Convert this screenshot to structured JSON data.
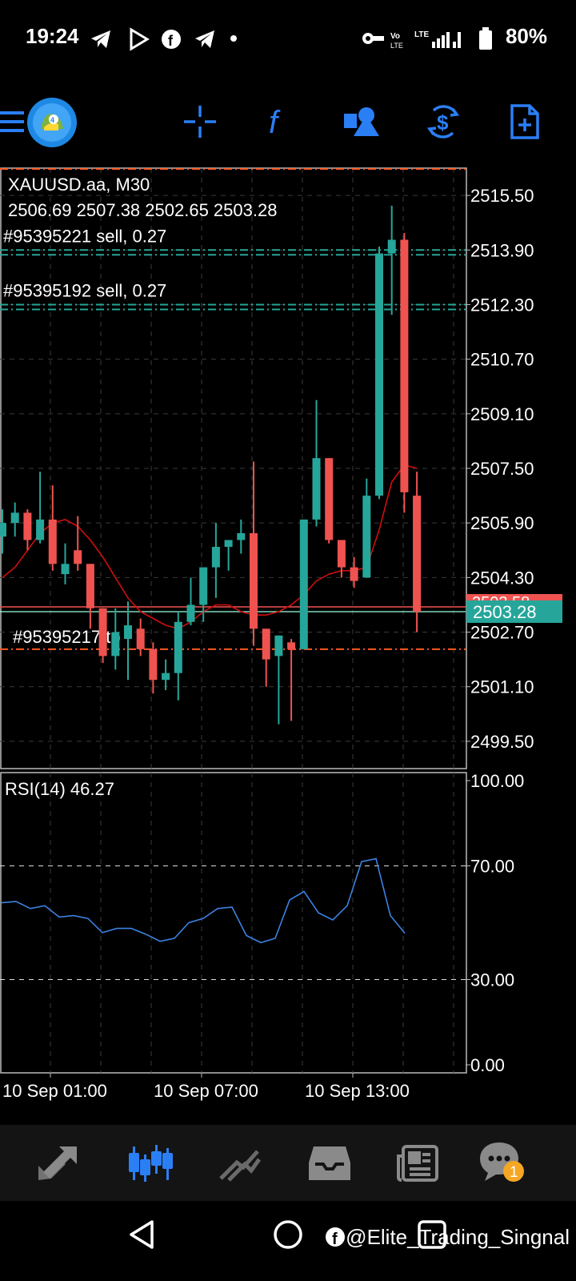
{
  "status_bar": {
    "time": "19:24",
    "battery": "80%",
    "icons": [
      "telegram-icon",
      "play-store-icon",
      "facebook-icon",
      "telegram-icon",
      "dot-icon",
      "vpn-key-icon",
      "volte-icon",
      "lte-signal-icon",
      "signal-icon",
      "battery-icon"
    ]
  },
  "toolbar": {
    "items": [
      "menu-icon",
      "metatrader-logo",
      "crosshair-icon",
      "indicators-icon",
      "objects-icon",
      "trade-icon",
      "new-order-icon"
    ]
  },
  "chart": {
    "symbol": "XAUUSD.aa, M30",
    "ohlc": "2506.69 2507.38 2502.65 2503.28",
    "orders": [
      {
        "label": "#95395221 sell, 0.27",
        "price": 2513.9
      },
      {
        "label": "#95395192 sell, 0.27",
        "price": 2512.3
      },
      {
        "label": "#95395217 tp",
        "price": 2502.2
      }
    ],
    "current_price_label": "2503.28",
    "hidden_price_label": "2503.58",
    "price_axis": [
      "2515.50",
      "2513.90",
      "2512.30",
      "2510.70",
      "2509.10",
      "2507.50",
      "2505.90",
      "2504.30",
      "2502.70",
      "2501.10",
      "2499.50"
    ],
    "rsi_title": "RSI(14) 46.27",
    "rsi_axis": [
      "100.00",
      "70.00",
      "30.00",
      "0.00"
    ],
    "time_labels": [
      "10 Sep 01:00",
      "10 Sep 07:00",
      "10 Sep 13:00"
    ],
    "colors": {
      "bull": "#26a69a",
      "bear": "#ef5350",
      "ma": "#d10e0e",
      "rsi": "#3b82e0",
      "grid": "#3a3a3a",
      "order": "#26a69a",
      "tp": "#ff5722"
    }
  },
  "chart_data": {
    "type": "candlestick",
    "symbol": "XAUUSD.aa",
    "timeframe": "M30",
    "candles": [
      {
        "o": 2505.5,
        "h": 2506.3,
        "l": 2505.0,
        "c": 2505.9
      },
      {
        "o": 2505.9,
        "h": 2506.5,
        "l": 2505.5,
        "c": 2506.2
      },
      {
        "o": 2506.2,
        "h": 2506.3,
        "l": 2505.1,
        "c": 2505.4
      },
      {
        "o": 2505.4,
        "h": 2507.4,
        "l": 2505.3,
        "c": 2506.0
      },
      {
        "o": 2506.0,
        "h": 2507.0,
        "l": 2504.5,
        "c": 2504.7
      },
      {
        "o": 2504.4,
        "h": 2505.3,
        "l": 2504.1,
        "c": 2504.7
      },
      {
        "o": 2505.1,
        "h": 2506.1,
        "l": 2504.5,
        "c": 2504.7
      },
      {
        "o": 2504.7,
        "h": 2504.7,
        "l": 2502.8,
        "c": 2503.4
      },
      {
        "o": 2503.4,
        "h": 2503.4,
        "l": 2501.8,
        "c": 2502.0
      },
      {
        "o": 2502.0,
        "h": 2503.4,
        "l": 2501.6,
        "c": 2502.7
      },
      {
        "o": 2502.5,
        "h": 2503.6,
        "l": 2501.3,
        "c": 2502.9
      },
      {
        "o": 2502.8,
        "h": 2503.1,
        "l": 2502.0,
        "c": 2502.2
      },
      {
        "o": 2502.2,
        "h": 2502.4,
        "l": 2500.9,
        "c": 2501.3
      },
      {
        "o": 2501.3,
        "h": 2501.9,
        "l": 2501.0,
        "c": 2501.5
      },
      {
        "o": 2501.5,
        "h": 2503.3,
        "l": 2500.7,
        "c": 2503.0
      },
      {
        "o": 2503.0,
        "h": 2504.3,
        "l": 2502.9,
        "c": 2503.5
      },
      {
        "o": 2503.5,
        "h": 2504.6,
        "l": 2503.0,
        "c": 2504.6
      },
      {
        "o": 2504.6,
        "h": 2505.9,
        "l": 2503.7,
        "c": 2505.2
      },
      {
        "o": 2505.2,
        "h": 2505.4,
        "l": 2504.5,
        "c": 2505.4
      },
      {
        "o": 2505.4,
        "h": 2506.0,
        "l": 2505.0,
        "c": 2505.6
      },
      {
        "o": 2505.6,
        "h": 2507.7,
        "l": 2502.3,
        "c": 2502.8
      },
      {
        "o": 2502.8,
        "h": 2502.8,
        "l": 2501.1,
        "c": 2501.9
      },
      {
        "o": 2502.0,
        "h": 2502.6,
        "l": 2500.0,
        "c": 2502.6
      },
      {
        "o": 2502.4,
        "h": 2502.5,
        "l": 2500.1,
        "c": 2502.2
      },
      {
        "o": 2502.2,
        "h": 2506.0,
        "l": 2502.2,
        "c": 2506.0
      },
      {
        "o": 2506.0,
        "h": 2509.5,
        "l": 2505.8,
        "c": 2507.8
      },
      {
        "o": 2507.8,
        "h": 2507.8,
        "l": 2505.3,
        "c": 2505.4
      },
      {
        "o": 2505.4,
        "h": 2505.4,
        "l": 2504.3,
        "c": 2504.6
      },
      {
        "o": 2504.6,
        "h": 2504.9,
        "l": 2504.0,
        "c": 2504.2
      },
      {
        "o": 2504.3,
        "h": 2507.2,
        "l": 2504.3,
        "c": 2506.7
      },
      {
        "o": 2506.7,
        "h": 2514.0,
        "l": 2506.6,
        "c": 2513.8
      },
      {
        "o": 2513.8,
        "h": 2515.2,
        "l": 2512.0,
        "c": 2514.2
      },
      {
        "o": 2514.2,
        "h": 2514.4,
        "l": 2506.2,
        "c": 2506.8
      },
      {
        "o": 2506.7,
        "h": 2507.4,
        "l": 2502.7,
        "c": 2503.3
      }
    ],
    "ma": [
      2504.3,
      2504.6,
      2505.1,
      2505.6,
      2505.9,
      2506.0,
      2505.8,
      2505.4,
      2504.9,
      2504.3,
      2503.7,
      2503.3,
      2503.1,
      2502.9,
      2502.8,
      2503.0,
      2503.3,
      2503.5,
      2503.5,
      2503.3,
      2503.2,
      2503.2,
      2503.3,
      2503.5,
      2503.8,
      2504.2,
      2504.4,
      2504.5,
      2504.5,
      2504.6,
      2505.7,
      2507.1,
      2507.6,
      2507.5
    ],
    "rsi": [
      57,
      57.5,
      55,
      56,
      52,
      52.5,
      51.5,
      46.5,
      48,
      48,
      46,
      43.5,
      44.5,
      50,
      51.5,
      55,
      55.5,
      45.5,
      43,
      44.5,
      58,
      61,
      53.5,
      51,
      56,
      71.5,
      72.5,
      52.5,
      46.3
    ],
    "ylim": [
      2498.7,
      2516.3
    ],
    "rsi_levels": [
      30,
      70
    ],
    "rsi_range": [
      0,
      100
    ]
  },
  "tabs": [
    "quotes-icon",
    "chart-icon",
    "trade-icon",
    "history-icon",
    "news-icon",
    "chat-icon"
  ],
  "tabs_badge": "1",
  "watermark": "@Elite_Trading_Singnal"
}
